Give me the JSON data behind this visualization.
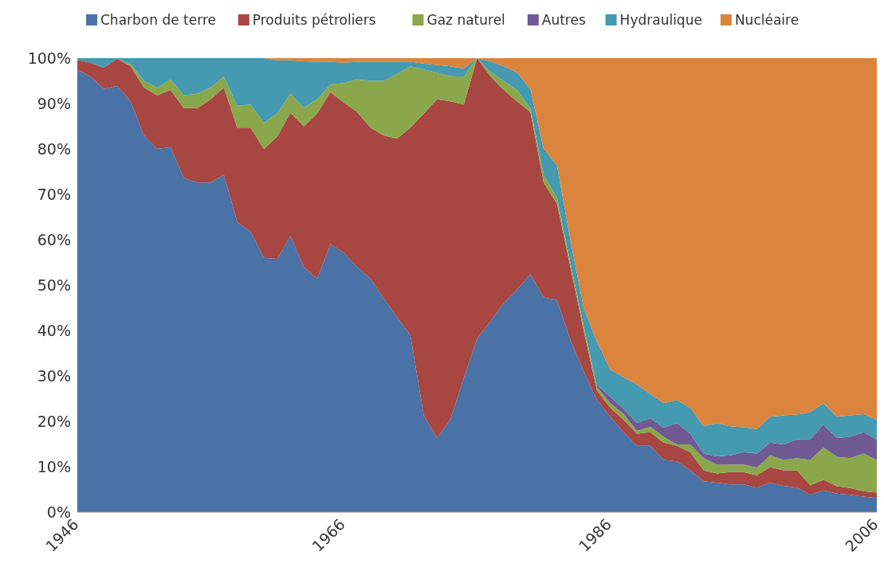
{
  "chart_data": {
    "type": "area",
    "stacked": true,
    "legend": "top",
    "x": [
      1946,
      1947,
      1948,
      1949,
      1950,
      1951,
      1952,
      1953,
      1954,
      1955,
      1956,
      1957,
      1958,
      1959,
      1960,
      1961,
      1962,
      1963,
      1964,
      1965,
      1966,
      1967,
      1968,
      1969,
      1970,
      1971,
      1972,
      1973,
      1974,
      1975,
      1976,
      1977,
      1978,
      1979,
      1980,
      1981,
      1982,
      1983,
      1984,
      1985,
      1986,
      1987,
      1988,
      1989,
      1990,
      1991,
      1992,
      1993,
      1994,
      1995,
      1996,
      1997,
      1998,
      1999,
      2000,
      2001,
      2002,
      2003,
      2004,
      2005,
      2006
    ],
    "xlim": [
      1946,
      2006
    ],
    "xticks": [
      1946,
      1966,
      1986,
      2006
    ],
    "ylim": [
      0,
      100
    ],
    "yticks": [
      {
        "value": 0,
        "label": "0%"
      },
      {
        "value": 10,
        "label": "10%"
      },
      {
        "value": 20,
        "label": "20%"
      },
      {
        "value": 30,
        "label": "30%"
      },
      {
        "value": 40,
        "label": "40%"
      },
      {
        "value": 50,
        "label": "50%"
      },
      {
        "value": 60,
        "label": "60%"
      },
      {
        "value": 70,
        "label": "70%"
      },
      {
        "value": 80,
        "label": "80%"
      },
      {
        "value": 90,
        "label": "90%"
      },
      {
        "value": 100,
        "label": "100%"
      }
    ],
    "series": [
      {
        "name": "Charbon de terre",
        "color": "#4a72a6",
        "values": [
          97.5,
          95.9,
          93.2,
          93.9,
          90.5,
          83,
          80,
          80.4,
          73.6,
          72.6,
          72.6,
          74.3,
          63.9,
          61.8,
          56,
          55.8,
          60.8,
          54,
          51.4,
          59.1,
          57.1,
          54,
          51.4,
          47,
          43,
          38.9,
          21.3,
          16.3,
          20.4,
          29.5,
          38.2,
          42,
          46,
          49,
          52.4,
          47.3,
          46.7,
          38,
          31,
          24.7,
          21,
          17.6,
          14.6,
          14.6,
          11.5,
          11.2,
          9.2,
          6.8,
          6.5,
          6.1,
          6.1,
          5.4,
          6.5,
          5.8,
          5.4,
          3.8,
          4.8,
          4.1,
          3.8,
          3.4,
          3.1
        ]
      },
      {
        "name": "Produits pétroliers",
        "color": "#a84642",
        "values": [
          2.1,
          3.1,
          4.7,
          6,
          7.7,
          10.5,
          11.8,
          12.6,
          15.4,
          16.4,
          18.3,
          19.2,
          20.8,
          22.9,
          24,
          26.9,
          27.2,
          31,
          36.4,
          33.4,
          33.1,
          34.1,
          33.3,
          36,
          39.3,
          45.8,
          66.5,
          74.6,
          70.1,
          60.3,
          61.8,
          54,
          47,
          41.5,
          35.7,
          25.3,
          21.2,
          16,
          9,
          2,
          2,
          2.7,
          2.7,
          3,
          3.8,
          3.4,
          4,
          2.4,
          2,
          2.7,
          2.7,
          2.7,
          3.4,
          3.4,
          3.8,
          2.1,
          2.3,
          1.6,
          1.5,
          1.2,
          1.2
        ]
      },
      {
        "name": "Gaz naturel",
        "color": "#8aa84b",
        "values": [
          0,
          0,
          0,
          0,
          0.5,
          1.5,
          1.7,
          2.3,
          2.8,
          3.2,
          2.6,
          2.4,
          4.8,
          5.1,
          5.8,
          5.1,
          4.2,
          4.1,
          3.1,
          1.7,
          4.3,
          7.2,
          10.3,
          12,
          14.2,
          13.5,
          9.7,
          5.9,
          5.5,
          6.1,
          0,
          1,
          2,
          2.5,
          0.9,
          1.7,
          1.4,
          1,
          1,
          0.8,
          1,
          1.3,
          0.6,
          1.2,
          1.3,
          0.3,
          1.7,
          2.7,
          2,
          1.7,
          1.7,
          1.7,
          2.6,
          2.3,
          2.7,
          5.6,
          7.1,
          6.5,
          6.6,
          8.3,
          7.2
        ]
      },
      {
        "name": "Autres",
        "color": "#705a94",
        "values": [
          0,
          0,
          0,
          0,
          0,
          0,
          0,
          0,
          0,
          0,
          0,
          0,
          0,
          0,
          0,
          0,
          0,
          0,
          0,
          0,
          0,
          0,
          0,
          0,
          0,
          0,
          0,
          0,
          0,
          0,
          0,
          0,
          0,
          0,
          0,
          0,
          0,
          0,
          0,
          0.5,
          1.4,
          1.1,
          1.7,
          1.9,
          2,
          4.7,
          2.4,
          1,
          1.8,
          2,
          2.7,
          3.1,
          2.8,
          3.4,
          4.1,
          4.5,
          5.1,
          4.1,
          4.7,
          4.7,
          4.5
        ]
      },
      {
        "name": "Hydraulique",
        "color": "#4599b0",
        "values": [
          0.4,
          1,
          2.1,
          0.1,
          1.3,
          5,
          6.5,
          4.7,
          8.2,
          7.8,
          6.5,
          4.1,
          10.5,
          10.2,
          14.2,
          11.7,
          7.3,
          10.2,
          8.3,
          5,
          4.5,
          3.9,
          4.2,
          4.2,
          2.7,
          1,
          1.3,
          1.7,
          2.2,
          1.8,
          0,
          2.3,
          3.2,
          3.8,
          4.2,
          5.7,
          7,
          5,
          4,
          9.5,
          6,
          7,
          8.5,
          5.3,
          5.4,
          5.1,
          5.7,
          6,
          7.3,
          6.4,
          5.5,
          5.4,
          5.7,
          6.4,
          5.5,
          6,
          4.7,
          4.7,
          4.7,
          4,
          4.3
        ]
      },
      {
        "name": "Nucléaire",
        "color": "#db843d",
        "values": [
          0,
          0,
          0,
          0,
          0,
          0,
          0,
          0,
          0,
          0,
          0,
          0,
          0,
          0,
          0,
          0.5,
          0.5,
          0.7,
          0.8,
          0.8,
          1,
          0.8,
          0.8,
          0.8,
          0.8,
          0.8,
          1.2,
          1.5,
          1.8,
          2.3,
          0,
          0.7,
          1.8,
          3.2,
          6.8,
          20,
          23.7,
          40,
          55,
          62.5,
          68.6,
          70.3,
          71.9,
          74,
          76,
          75.3,
          77,
          81.1,
          80.4,
          81.1,
          81.3,
          81.7,
          79,
          78.7,
          78.5,
          78,
          76,
          79,
          78.7,
          78.4,
          79.7
        ]
      }
    ]
  }
}
